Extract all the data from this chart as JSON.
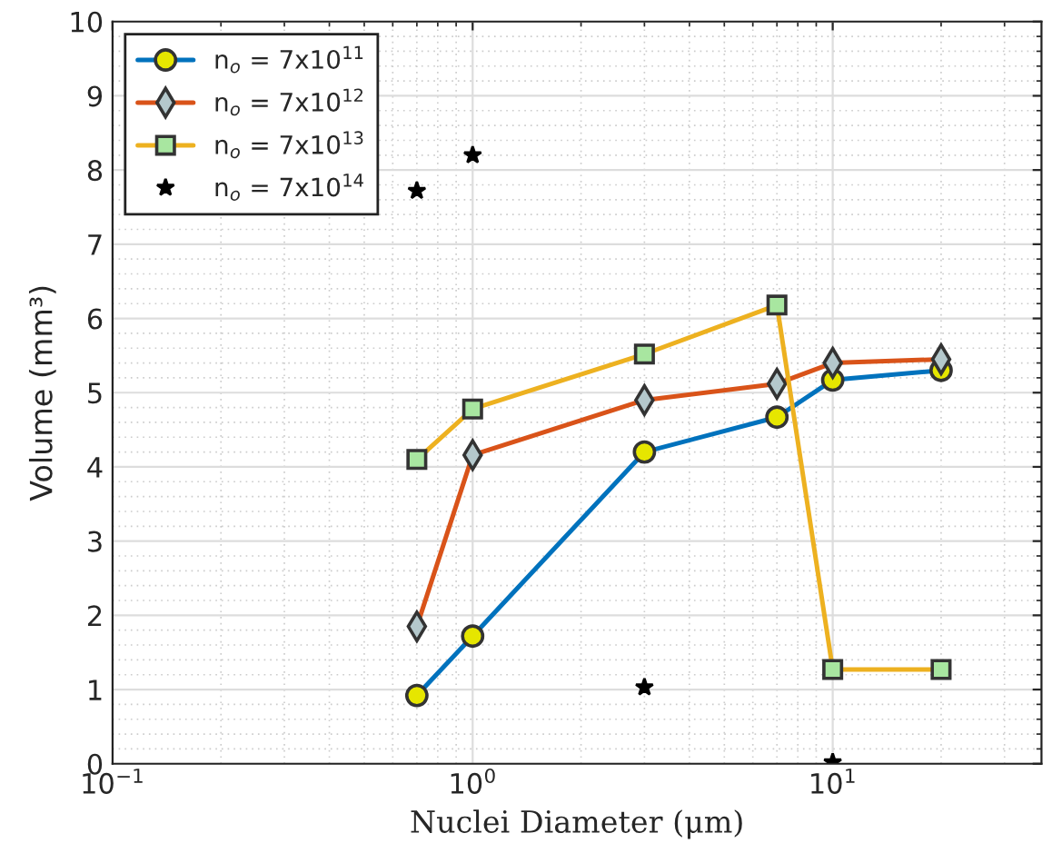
{
  "chart_data": {
    "type": "line",
    "xlabel": "Nuclei Diameter (μm)",
    "ylabel": "Volume (mm³)",
    "log": "x",
    "xlim": [
      0.1,
      38
    ],
    "xticks": [
      {
        "value": 0.1,
        "label": "10$^{−1}$"
      },
      {
        "value": 1,
        "label": "10$^{0}$"
      },
      {
        "value": 10,
        "label": "10$^{1}$"
      }
    ],
    "ylim": [
      0,
      10
    ],
    "yticks": [
      0,
      1,
      2,
      3,
      4,
      5,
      6,
      7,
      8,
      9,
      10
    ],
    "grid": true,
    "legend": "top left",
    "x": [
      0.7,
      1,
      3,
      7,
      10,
      20
    ],
    "series": [
      {
        "name": "n$_{o}$ = 7x10$^{11}$",
        "color": "#0072bd",
        "marker": "circle",
        "values": [
          0.92,
          1.72,
          4.2,
          4.67,
          5.17,
          5.3
        ]
      },
      {
        "name": "n$_{o}$ = 7x10$^{12}$",
        "color": "#d95319",
        "marker": "diamond",
        "values": [
          1.85,
          4.16,
          4.9,
          5.12,
          5.4,
          5.45
        ]
      },
      {
        "name": "n$_{o}$ = 7x10$^{13}$",
        "color": "#edb120",
        "marker": "square",
        "values": [
          4.1,
          4.78,
          5.52,
          6.18,
          1.27,
          1.27
        ]
      },
      {
        "name": "n$_{o}$ = 7x10$^{14}$",
        "color": "#000000",
        "type": "scatter",
        "marker": "star",
        "x": [
          0.7,
          1,
          3,
          10
        ],
        "values": [
          7.72,
          8.2,
          1.03,
          0.02
        ]
      }
    ]
  }
}
